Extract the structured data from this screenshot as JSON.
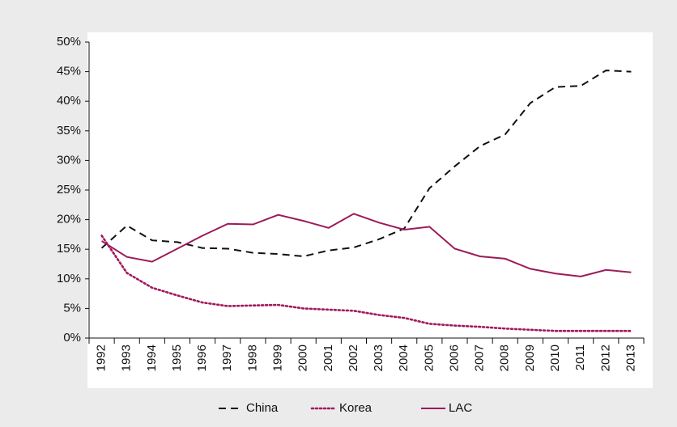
{
  "chart_data": {
    "type": "line",
    "categories": [
      "1992",
      "1993",
      "1994",
      "1995",
      "1996",
      "1997",
      "1998",
      "1999",
      "2000",
      "2001",
      "2002",
      "2003",
      "2004",
      "2005",
      "2006",
      "2007",
      "2008",
      "2009",
      "2010",
      "2011",
      "2012",
      "2013"
    ],
    "series": [
      {
        "name": "China",
        "color": "#111111",
        "style": "dashed",
        "values": [
          15.2,
          19.0,
          16.5,
          16.2,
          15.2,
          15.1,
          14.4,
          14.2,
          13.8,
          14.8,
          15.3,
          16.7,
          18.5,
          25.3,
          29.0,
          32.4,
          34.4,
          39.7,
          42.4,
          42.6,
          45.2,
          45.0
        ]
      },
      {
        "name": "Korea",
        "color": "#a3185c",
        "style": "dotted",
        "values": [
          17.3,
          11.0,
          8.5,
          7.2,
          6.0,
          5.4,
          5.5,
          5.6,
          5.0,
          4.8,
          4.6,
          3.9,
          3.4,
          2.4,
          2.1,
          1.9,
          1.6,
          1.4,
          1.2,
          1.2,
          1.2,
          1.2
        ]
      },
      {
        "name": "LAC",
        "color": "#9c1a5a",
        "style": "solid",
        "values": [
          16.4,
          13.7,
          12.9,
          15.1,
          17.3,
          19.3,
          19.2,
          20.8,
          19.8,
          18.6,
          21.0,
          19.5,
          18.3,
          18.8,
          15.1,
          13.8,
          13.4,
          11.7,
          10.9,
          10.4,
          11.5,
          11.1
        ]
      }
    ],
    "ylim": [
      0,
      50
    ],
    "yticks": [
      {
        "value": 0,
        "label": "0%"
      },
      {
        "value": 5,
        "label": "5%"
      },
      {
        "value": 10,
        "label": "10%"
      },
      {
        "value": 15,
        "label": "15%"
      },
      {
        "value": 20,
        "label": "20%"
      },
      {
        "value": 25,
        "label": "25%"
      },
      {
        "value": 30,
        "label": "30%"
      },
      {
        "value": 35,
        "label": "35%"
      },
      {
        "value": 40,
        "label": "40%"
      },
      {
        "value": 45,
        "label": "45%"
      },
      {
        "value": 50,
        "label": "50%"
      }
    ],
    "grid": false,
    "legend": "bottom"
  }
}
